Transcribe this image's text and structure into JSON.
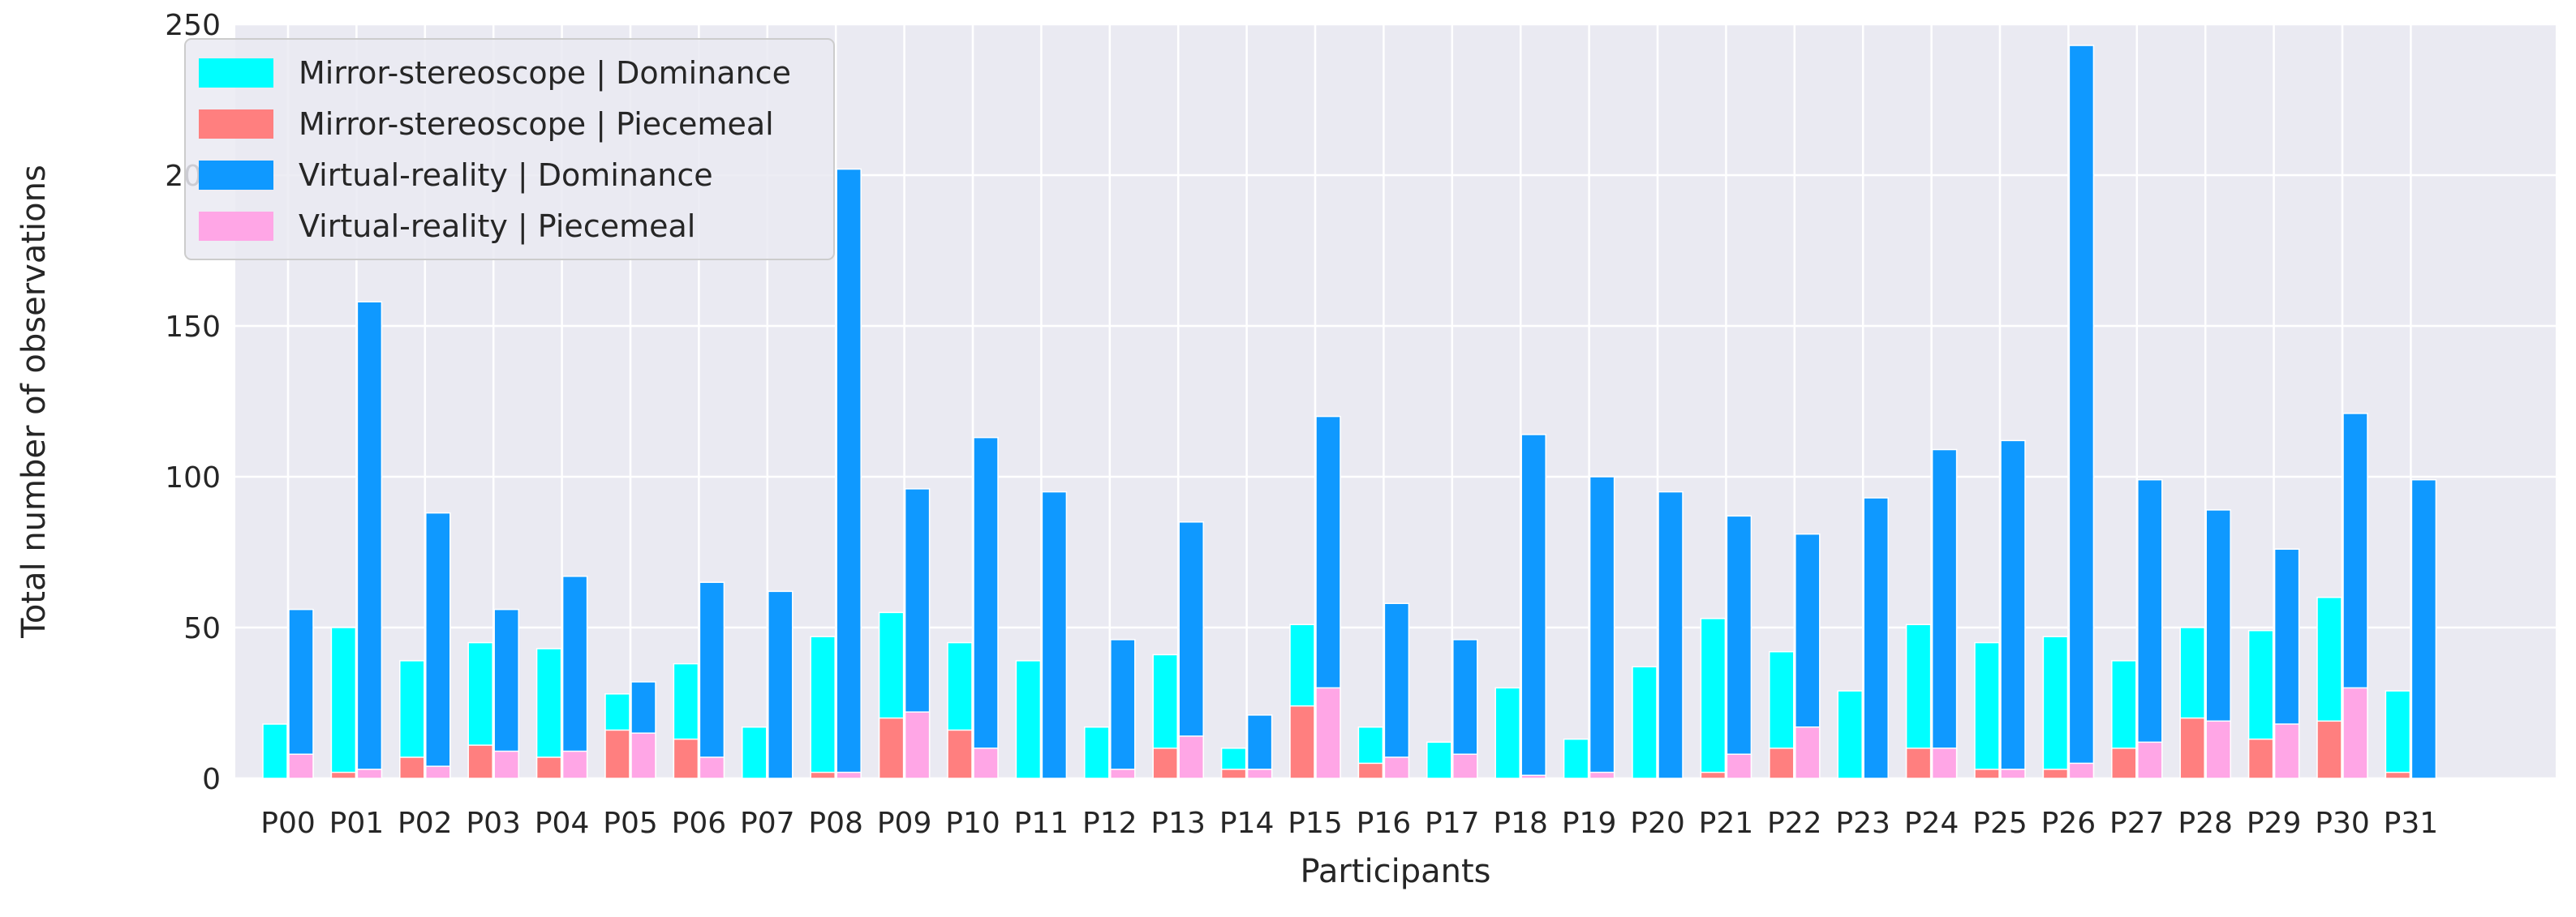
{
  "chart_data": {
    "type": "bar",
    "stacked": true,
    "xlabel": "Participants",
    "ylabel": "Total number of observations",
    "ylim": [
      0,
      250
    ],
    "yticks": [
      0,
      50,
      100,
      150,
      200,
      250
    ],
    "grid": true,
    "legend_position": "top-left",
    "categories": [
      "P00",
      "P01",
      "P02",
      "P03",
      "P04",
      "P05",
      "P06",
      "P07",
      "P08",
      "P09",
      "P10",
      "P11",
      "P12",
      "P13",
      "P14",
      "P15",
      "P16",
      "P17",
      "P18",
      "P19",
      "P20",
      "P21",
      "P22",
      "P23",
      "P24",
      "P25",
      "P26",
      "P27",
      "P28",
      "P29",
      "P30",
      "P31"
    ],
    "groups": [
      {
        "name": "Mirror-stereoscope",
        "stack": [
          {
            "name": "Mirror-stereoscope | Dominance",
            "color": "#00FFFF",
            "values": [
              18,
              50,
              39,
              45,
              43,
              28,
              38,
              17,
              47,
              55,
              45,
              39,
              17,
              41,
              10,
              51,
              17,
              12,
              30,
              13,
              37,
              53,
              42,
              29,
              51,
              45,
              47,
              39,
              50,
              49,
              60,
              29
            ]
          },
          {
            "name": "Mirror-stereoscope | Piecemeal",
            "color": "#FF7F7F",
            "values": [
              0,
              2,
              7,
              11,
              7,
              16,
              13,
              0,
              2,
              20,
              16,
              0,
              0,
              10,
              3,
              24,
              5,
              0,
              0,
              0,
              0,
              2,
              10,
              0,
              10,
              3,
              3,
              10,
              20,
              13,
              19,
              2
            ]
          }
        ]
      },
      {
        "name": "Virtual-reality",
        "stack": [
          {
            "name": "Virtual-reality | Dominance",
            "color": "#0F99FF",
            "values": [
              56,
              158,
              88,
              56,
              67,
              32,
              65,
              62,
              202,
              96,
              113,
              95,
              46,
              85,
              21,
              120,
              58,
              46,
              114,
              100,
              95,
              87,
              81,
              93,
              109,
              112,
              243,
              99,
              89,
              76,
              121,
              99
            ]
          },
          {
            "name": "Virtual-reality | Piecemeal",
            "color": "#FFA6E6",
            "values": [
              8,
              3,
              4,
              9,
              9,
              15,
              7,
              0,
              2,
              22,
              10,
              0,
              3,
              14,
              3,
              30,
              7,
              8,
              1,
              2,
              0,
              8,
              17,
              0,
              10,
              3,
              5,
              12,
              19,
              18,
              30,
              0
            ]
          }
        ]
      }
    ]
  }
}
